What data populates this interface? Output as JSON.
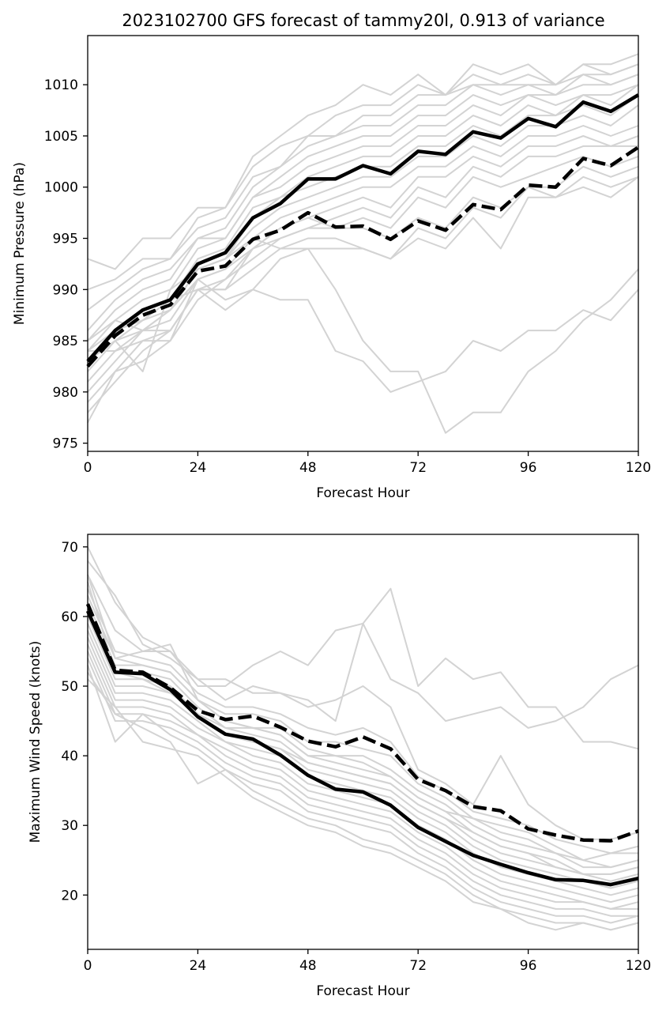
{
  "chart_data": [
    {
      "type": "line",
      "title": "2023102700 GFS forecast of tammy20l, 0.913 of variance",
      "xlabel": "Forecast Hour",
      "ylabel": "Minimum Pressure (hPa)",
      "xlim": [
        0,
        120
      ],
      "ylim": [
        974.2,
        1014.8
      ],
      "xticks": [
        0,
        24,
        48,
        72,
        96,
        120
      ],
      "yticks": [
        975,
        980,
        985,
        990,
        995,
        1000,
        1005,
        1010
      ],
      "grid": false,
      "x": [
        0,
        6,
        12,
        18,
        24,
        30,
        36,
        42,
        48,
        54,
        60,
        66,
        72,
        78,
        84,
        90,
        96,
        102,
        108,
        114,
        120
      ],
      "series": [
        {
          "style": "solid",
          "color": "#000000",
          "values": [
            983,
            986,
            988,
            989,
            992.5,
            993.6,
            997,
            998.4,
            1000.8,
            1000.8,
            1002.1,
            1001.3,
            1003.5,
            1003.2,
            1005.4,
            1004.8,
            1006.7,
            1005.9,
            1008.3,
            1007.4,
            1009
          ]
        },
        {
          "style": "dashed",
          "color": "#000000",
          "values": [
            982.5,
            985.5,
            987.5,
            988.5,
            991.8,
            992.3,
            994.9,
            995.8,
            997.5,
            996.1,
            996.2,
            994.9,
            996.7,
            995.8,
            998.3,
            997.8,
            1000.2,
            1000,
            1002.8,
            1002.1,
            1003.9
          ]
        }
      ],
      "members": [
        [
          993,
          992,
          995,
          995,
          998,
          998,
          1003,
          1005,
          1007,
          1008,
          1010,
          1009,
          1011,
          1009,
          1012,
          1011,
          1012,
          1010,
          1012,
          1012,
          1013
        ],
        [
          990,
          991,
          993,
          993,
          997,
          998,
          1002,
          1004,
          1005,
          1007,
          1008,
          1008,
          1010,
          1009,
          1011,
          1010,
          1011,
          1010,
          1012,
          1011,
          1012
        ],
        [
          988,
          990,
          992,
          993,
          996,
          997,
          1001,
          1002,
          1005,
          1005,
          1007,
          1007,
          1009,
          1009,
          1010,
          1010,
          1010,
          1010,
          1011,
          1011,
          1012
        ],
        [
          986,
          989,
          991,
          992,
          995,
          996,
          1000,
          1002,
          1004,
          1005,
          1006,
          1006,
          1008,
          1008,
          1010,
          1009,
          1010,
          1009,
          1011,
          1010,
          1011
        ],
        [
          985,
          988,
          990,
          991,
          995,
          995,
          999,
          1001,
          1003,
          1004,
          1005,
          1005,
          1007,
          1007,
          1009,
          1008,
          1009,
          1009,
          1010,
          1010,
          1011
        ],
        [
          984,
          987,
          989,
          990,
          994,
          995,
          999,
          1000,
          1002,
          1003,
          1004,
          1004,
          1006,
          1006,
          1008,
          1007,
          1009,
          1008,
          1009,
          1009,
          1010
        ],
        [
          983,
          986,
          988,
          989,
          993,
          994,
          998,
          999,
          1001,
          1002,
          1003,
          1003,
          1005,
          1005,
          1007,
          1006,
          1008,
          1007,
          1009,
          1008,
          1010
        ],
        [
          982,
          985,
          987,
          988,
          992,
          993,
          997,
          999,
          1000,
          1001,
          1002,
          1002,
          1004,
          1004,
          1006,
          1005,
          1007,
          1007,
          1008,
          1007,
          1009
        ],
        [
          981,
          984,
          986,
          988,
          992,
          993,
          996,
          998,
          999,
          1000,
          1001,
          1001,
          1003,
          1003,
          1005,
          1004,
          1006,
          1006,
          1007,
          1006,
          1008
        ],
        [
          980,
          983,
          986,
          987,
          991,
          992,
          995,
          997,
          998,
          999,
          1000,
          1000,
          1002,
          1002,
          1004,
          1003,
          1005,
          1005,
          1006,
          1005,
          1006
        ],
        [
          979,
          982,
          985,
          986,
          990,
          991,
          994,
          996,
          997,
          998,
          999,
          998,
          1001,
          1001,
          1003,
          1002,
          1004,
          1004,
          1005,
          1004,
          1005
        ],
        [
          978,
          981,
          984,
          986,
          990,
          990,
          994,
          995,
          996,
          997,
          998,
          997,
          1000,
          999,
          1002,
          1001,
          1003,
          1003,
          1004,
          1004,
          1004
        ],
        [
          977,
          982,
          983,
          985,
          989,
          991,
          993,
          995,
          996,
          996,
          997,
          996,
          999,
          998,
          1001,
          1000,
          1001,
          1002,
          1003,
          1002,
          1003
        ],
        [
          985,
          987,
          986,
          988,
          991,
          992,
          994,
          996,
          997,
          996,
          996,
          995,
          997,
          996,
          999,
          998,
          1000,
          1000,
          1002,
          1001,
          1002
        ],
        [
          983,
          985,
          982,
          990,
          992,
          993,
          995,
          994,
          995,
          995,
          994,
          993,
          995,
          994,
          997,
          994,
          999,
          999,
          1000,
          999,
          1001
        ],
        [
          984,
          986,
          987,
          989,
          990,
          990,
          992,
          994,
          994,
          994,
          994,
          993,
          996,
          995,
          998,
          997,
          1000,
          999,
          1001,
          1000,
          1001
        ],
        [
          984,
          984,
          985,
          985,
          991,
          989,
          990,
          993,
          994,
          990,
          985,
          982,
          982,
          976,
          978,
          978,
          982,
          984,
          987,
          989,
          992
        ],
        [
          983,
          985,
          986,
          986,
          990,
          988,
          990,
          989,
          989,
          984,
          983,
          980,
          981,
          982,
          985,
          984,
          986,
          986,
          988,
          987,
          990
        ]
      ]
    },
    {
      "type": "line",
      "title": "",
      "xlabel": "Forecast Hour",
      "ylabel": "Maximum Wind Speed (knots)",
      "xlim": [
        0,
        120
      ],
      "ylim": [
        12.2,
        71.8
      ],
      "xticks": [
        0,
        24,
        48,
        72,
        96,
        120
      ],
      "yticks": [
        20,
        30,
        40,
        50,
        60,
        70
      ],
      "grid": false,
      "x": [
        0,
        6,
        12,
        18,
        24,
        30,
        36,
        42,
        48,
        54,
        60,
        66,
        72,
        78,
        84,
        90,
        96,
        102,
        108,
        114,
        120
      ],
      "series": [
        {
          "style": "solid",
          "color": "#000000",
          "values": [
            60.8,
            52,
            51.8,
            49.5,
            45.6,
            43.1,
            42.4,
            40.1,
            37.2,
            35.2,
            34.8,
            32.9,
            29.7,
            27.7,
            25.7,
            24.4,
            23.2,
            22.2,
            22.1,
            21.5,
            22.4
          ]
        },
        {
          "style": "dashed",
          "color": "#000000",
          "values": [
            61.8,
            52.3,
            52,
            49.8,
            46.5,
            45.2,
            45.7,
            44.1,
            42.1,
            41.3,
            42.7,
            41,
            36.6,
            35,
            32.7,
            32.1,
            29.5,
            28.6,
            27.9,
            27.8,
            29.2
          ]
        }
      ],
      "members": [
        [
          70,
          62,
          57,
          55,
          50,
          50,
          53,
          55,
          53,
          58,
          59,
          64,
          50,
          54,
          51,
          52,
          47,
          47,
          42,
          42,
          41
        ],
        [
          68,
          63,
          56,
          54,
          51,
          51,
          49,
          49,
          48,
          45,
          59,
          51,
          49,
          45,
          46,
          47,
          44,
          45,
          47,
          51,
          53
        ],
        [
          66,
          58,
          55,
          55,
          51,
          48,
          50,
          49,
          47,
          48,
          50,
          47,
          38,
          36,
          33,
          40,
          33,
          30,
          28,
          28,
          29
        ],
        [
          64,
          55,
          54,
          53,
          49,
          47,
          47,
          46,
          44,
          43,
          44,
          42,
          37,
          35,
          32,
          31,
          30,
          28,
          27,
          26,
          27
        ],
        [
          63,
          54,
          55,
          56,
          48,
          46,
          46,
          45,
          42,
          42,
          41,
          40,
          36,
          34,
          31,
          30,
          29,
          27,
          25,
          26,
          26
        ],
        [
          62,
          53,
          53,
          52,
          48,
          45,
          44,
          44,
          41,
          40,
          40,
          38,
          35,
          33,
          30,
          28,
          27,
          26,
          24,
          24,
          25
        ],
        [
          61,
          52,
          52,
          51,
          47,
          44,
          44,
          43,
          40,
          39,
          38,
          37,
          34,
          32,
          29,
          27,
          26,
          25,
          23,
          23,
          24
        ],
        [
          60,
          51,
          51,
          50,
          46,
          44,
          43,
          42,
          39,
          38,
          37,
          36,
          33,
          31,
          28,
          26,
          25,
          24,
          23,
          22,
          23
        ],
        [
          59,
          50,
          50,
          49,
          46,
          43,
          42,
          41,
          38,
          37,
          36,
          35,
          32,
          30,
          27,
          25,
          24,
          23,
          22,
          21,
          22
        ],
        [
          58,
          49,
          49,
          48,
          45,
          42,
          41,
          40,
          37,
          36,
          35,
          34,
          31,
          29,
          26,
          24,
          23,
          22,
          21,
          20,
          21
        ],
        [
          57,
          48,
          48,
          47,
          44,
          42,
          40,
          39,
          36,
          35,
          34,
          33,
          30,
          28,
          25,
          23,
          22,
          21,
          20,
          19,
          20
        ],
        [
          56,
          47,
          47,
          46,
          43,
          41,
          39,
          38,
          35,
          34,
          33,
          32,
          29,
          27,
          24,
          22,
          21,
          20,
          19,
          18,
          19
        ],
        [
          55,
          46,
          46,
          45,
          43,
          40,
          38,
          37,
          34,
          33,
          32,
          31,
          28,
          26,
          23,
          21,
          20,
          19,
          19,
          18,
          18
        ],
        [
          54,
          45,
          45,
          44,
          42,
          39,
          37,
          36,
          33,
          32,
          31,
          30,
          27,
          25,
          22,
          20,
          19,
          18,
          18,
          17,
          17
        ],
        [
          53,
          42,
          46,
          43,
          41,
          38,
          36,
          35,
          32,
          31,
          30,
          29,
          26,
          24,
          21,
          19,
          18,
          17,
          17,
          16,
          17
        ],
        [
          52,
          46,
          44,
          42,
          36,
          38,
          35,
          33,
          31,
          30,
          28,
          27,
          25,
          23,
          20,
          18,
          17,
          16,
          16,
          15,
          16
        ],
        [
          51,
          47,
          42,
          41,
          40,
          37,
          34,
          32,
          30,
          29,
          27,
          26,
          24,
          22,
          19,
          18,
          16,
          15,
          16,
          15,
          16
        ],
        [
          66,
          54,
          53,
          52,
          48,
          45,
          44,
          43,
          40,
          40,
          39,
          37,
          34,
          32,
          31,
          29,
          28,
          26,
          25,
          24,
          25
        ],
        [
          65,
          52,
          51,
          49,
          46,
          43,
          42,
          41,
          39,
          38,
          37,
          36,
          33,
          31,
          29,
          27,
          26,
          24,
          23,
          23,
          24
        ]
      ]
    }
  ],
  "styles": {
    "member_color": "#d3d3d3",
    "mean_color": "#000000",
    "axis_color": "#000000",
    "background": "#ffffff"
  }
}
